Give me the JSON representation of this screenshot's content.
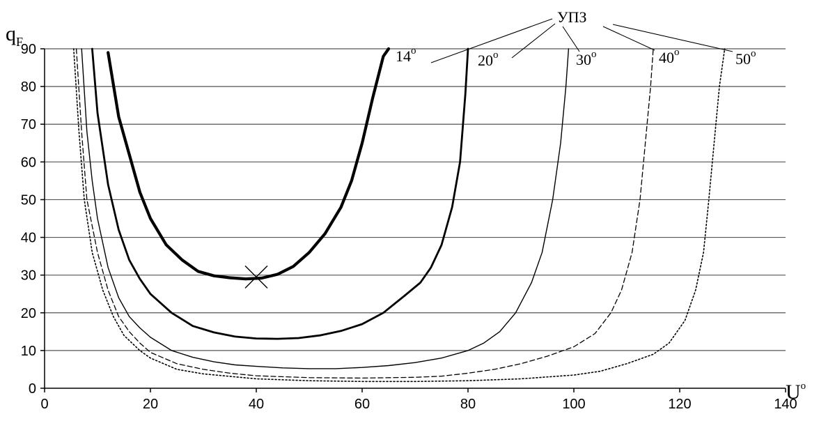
{
  "chart_data": {
    "type": "line",
    "xlabel": "U",
    "xlabel_sup": "o",
    "ylabel": "q",
    "ylabel_sub": "F",
    "xlim": [
      0,
      140
    ],
    "ylim": [
      0,
      90
    ],
    "x_ticks": [
      0,
      20,
      40,
      60,
      80,
      100,
      120,
      140
    ],
    "y_ticks": [
      0,
      10,
      20,
      30,
      40,
      50,
      60,
      70,
      80,
      90
    ],
    "grid": "horizontal",
    "group_label": "УПЗ",
    "series": [
      {
        "name": "14",
        "unit": "o",
        "style": "bold",
        "color": "#000000",
        "points": [
          [
            12,
            89
          ],
          [
            14,
            72
          ],
          [
            16,
            62
          ],
          [
            18,
            52
          ],
          [
            20,
            45
          ],
          [
            23,
            38
          ],
          [
            26,
            34
          ],
          [
            29,
            31
          ],
          [
            32,
            29.8
          ],
          [
            35,
            29.3
          ],
          [
            38,
            29.0
          ],
          [
            41,
            29.2
          ],
          [
            44,
            30.2
          ],
          [
            47,
            32.3
          ],
          [
            50,
            36
          ],
          [
            53,
            41
          ],
          [
            56,
            48
          ],
          [
            58,
            55
          ],
          [
            60,
            65
          ],
          [
            62,
            77
          ],
          [
            64,
            88
          ],
          [
            65,
            90
          ]
        ]
      },
      {
        "name": "20",
        "unit": "o",
        "style": "medium",
        "color": "#000000",
        "points": [
          [
            9,
            90
          ],
          [
            10,
            73
          ],
          [
            12,
            54
          ],
          [
            14,
            42
          ],
          [
            16,
            34
          ],
          [
            18,
            29
          ],
          [
            20,
            25
          ],
          [
            24,
            20
          ],
          [
            28,
            16.5
          ],
          [
            32,
            14.8
          ],
          [
            36,
            13.7
          ],
          [
            40,
            13.2
          ],
          [
            44,
            13.1
          ],
          [
            48,
            13.3
          ],
          [
            52,
            14
          ],
          [
            56,
            15.2
          ],
          [
            60,
            17
          ],
          [
            64,
            20
          ],
          [
            68,
            24.5
          ],
          [
            71,
            28
          ],
          [
            73,
            32
          ],
          [
            75,
            38
          ],
          [
            77,
            48
          ],
          [
            78.5,
            60
          ],
          [
            79.5,
            78
          ],
          [
            80,
            90
          ]
        ]
      },
      {
        "name": "30",
        "unit": "o",
        "style": "thin",
        "color": "#000000",
        "points": [
          [
            7,
            90
          ],
          [
            8,
            68
          ],
          [
            9,
            55
          ],
          [
            10,
            45
          ],
          [
            12,
            32
          ],
          [
            14,
            24
          ],
          [
            16,
            19
          ],
          [
            18,
            16
          ],
          [
            20,
            13.5
          ],
          [
            24,
            10
          ],
          [
            28,
            8.2
          ],
          [
            32,
            7
          ],
          [
            36,
            6.2
          ],
          [
            40,
            5.8
          ],
          [
            45,
            5.4
          ],
          [
            50,
            5.2
          ],
          [
            55,
            5.2
          ],
          [
            60,
            5.5
          ],
          [
            65,
            6
          ],
          [
            70,
            6.8
          ],
          [
            75,
            8
          ],
          [
            80,
            10
          ],
          [
            83,
            12
          ],
          [
            86,
            15
          ],
          [
            89,
            20
          ],
          [
            92,
            28
          ],
          [
            94,
            36
          ],
          [
            96,
            50
          ],
          [
            97.5,
            65
          ],
          [
            98.5,
            80
          ],
          [
            99,
            90
          ]
        ]
      },
      {
        "name": "40",
        "unit": "o",
        "style": "dashed",
        "color": "#000000",
        "points": [
          [
            6,
            90
          ],
          [
            7,
            68
          ],
          [
            8,
            50
          ],
          [
            10,
            36
          ],
          [
            12,
            26
          ],
          [
            14,
            19
          ],
          [
            16,
            15
          ],
          [
            18,
            12
          ],
          [
            20,
            9.5
          ],
          [
            25,
            6.5
          ],
          [
            30,
            5
          ],
          [
            35,
            4
          ],
          [
            40,
            3.3
          ],
          [
            50,
            2.8
          ],
          [
            60,
            2.7
          ],
          [
            70,
            2.9
          ],
          [
            75,
            3.2
          ],
          [
            80,
            4
          ],
          [
            85,
            5
          ],
          [
            90,
            6.5
          ],
          [
            95,
            8.5
          ],
          [
            100,
            11
          ],
          [
            104,
            14.5
          ],
          [
            107,
            20
          ],
          [
            109,
            26
          ],
          [
            111,
            36
          ],
          [
            112.5,
            50
          ],
          [
            113.5,
            65
          ],
          [
            114.5,
            80
          ],
          [
            115,
            90
          ]
        ]
      },
      {
        "name": "50",
        "unit": "o",
        "style": "dotted",
        "color": "#000000",
        "points": [
          [
            5.5,
            90
          ],
          [
            6.5,
            68
          ],
          [
            7.5,
            50
          ],
          [
            9,
            36
          ],
          [
            11,
            26
          ],
          [
            13,
            19
          ],
          [
            15,
            14
          ],
          [
            18,
            10
          ],
          [
            20,
            8
          ],
          [
            25,
            5
          ],
          [
            30,
            3.8
          ],
          [
            40,
            2.5
          ],
          [
            50,
            2
          ],
          [
            60,
            1.8
          ],
          [
            70,
            1.8
          ],
          [
            80,
            2
          ],
          [
            90,
            2.5
          ],
          [
            100,
            3.5
          ],
          [
            105,
            4.5
          ],
          [
            110,
            6.5
          ],
          [
            115,
            9
          ],
          [
            118,
            12
          ],
          [
            121,
            18
          ],
          [
            123,
            26
          ],
          [
            124.5,
            36
          ],
          [
            125.5,
            50
          ],
          [
            126.5,
            65
          ],
          [
            127.5,
            80
          ],
          [
            128.5,
            90
          ]
        ]
      }
    ],
    "marker": {
      "x": 40,
      "y": 29.5,
      "symbol": "x"
    }
  }
}
